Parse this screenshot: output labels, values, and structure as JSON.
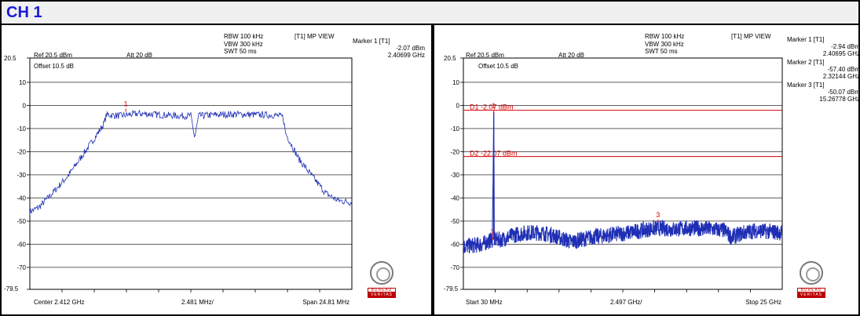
{
  "header": {
    "title": "CH 1"
  },
  "panels": [
    {
      "settings": {
        "rbw": "RBW 100 kHz",
        "vbw": "VBW 300 kHz",
        "swt": "SWT 50 ms",
        "view": "[T1] MP VIEW",
        "ref": "Ref 20.5 dBm",
        "att": "Att  20 dB",
        "offset": "Offset 10.5 dB",
        "top_value": "20.5",
        "bottom_value": "-79.5",
        "center": "Center 2.412 GHz",
        "div": "2.481 MHz/",
        "span": "Span 24.81 MHz"
      },
      "markers_info": [
        {
          "label": "Marker 1 [T1]",
          "level": "-2.07 dBm",
          "freq": "2.40699 GHz"
        }
      ]
    },
    {
      "settings": {
        "rbw": "RBW 100 kHz",
        "vbw": "VBW 300 kHz",
        "swt": "SWT 50 ms",
        "view": "[T1] MP VIEW",
        "ref": "Ref 20.5 dBm",
        "att": "Att  20 dB",
        "offset": "Offset 10.5 dB",
        "top_value": "20.5",
        "bottom_value": "-79.5",
        "start": "Start 30 MHz",
        "div": "2.497 GHz/",
        "stop": "Stop 25 GHz",
        "d1_label": "D1 -2.07 dBm",
        "d2_label": "D2 -22.07 dBm"
      },
      "markers_info": [
        {
          "label": "Marker 1 [T1]",
          "level": "-2.94 dBm",
          "freq": "2.40695 GHz"
        },
        {
          "label": "Marker 2 [T1]",
          "level": "-57.40 dBm",
          "freq": "2.32144 GHz"
        },
        {
          "label": "Marker 3 [T1]",
          "level": "-50.07 dBm",
          "freq": "15.26778 GHz"
        }
      ]
    }
  ],
  "logo": {
    "line1": "BUREAU",
    "line2": "VERITAS"
  },
  "chart_data": [
    {
      "type": "line",
      "xlim": [
        2399.6,
        2424.4
      ],
      "ylim": [
        -79.5,
        20.5
      ],
      "y_ticks": [
        10,
        0,
        -10,
        -20,
        -30,
        -40,
        -50,
        -60,
        -70
      ],
      "grid": true,
      "colors": {
        "trace": "#1f2fb5",
        "marker": "#dd0000",
        "grid": "#000000"
      },
      "series": [
        {
          "x": [
            2399.6,
            2400.3,
            2401.0,
            2401.8,
            2402.6,
            2403.6,
            2404.6,
            2405.3,
            2405.5,
            2406.5,
            2408.0,
            2409.5,
            2411.0,
            2412.0,
            2412.3,
            2412.6,
            2414.0,
            2415.5,
            2417.0,
            2418.5,
            2419.1,
            2419.3,
            2420.3,
            2421.4,
            2422.4,
            2423.3,
            2424.4
          ],
          "y": [
            -46,
            -44,
            -40,
            -35,
            -30,
            -22,
            -14,
            -8,
            -4,
            -4.5,
            -3.5,
            -4,
            -4.5,
            -4.5,
            -14,
            -4.5,
            -4,
            -3.8,
            -4,
            -4.2,
            -5,
            -12,
            -23,
            -31,
            -38,
            -41,
            -42
          ]
        }
      ],
      "markers": [
        {
          "label": "1",
          "x": 2406.99,
          "y": -2.07
        }
      ]
    },
    {
      "type": "line",
      "xlim": [
        30,
        25000
      ],
      "ylim": [
        -79.5,
        20.5
      ],
      "y_ticks": [
        10,
        0,
        -10,
        -20,
        -30,
        -40,
        -50,
        -60,
        -70
      ],
      "grid": true,
      "colors": {
        "trace": "#1f2fb5",
        "marker": "#dd0000",
        "grid": "#000000"
      },
      "display_lines": [
        {
          "label": "D1",
          "y": -2.07
        },
        {
          "label": "D2",
          "y": -22.07
        }
      ],
      "series": [
        {
          "x": [
            30,
            1500,
            2300,
            2407,
            2450,
            3000,
            4000,
            5000,
            6000,
            7000,
            8500,
            10000,
            11500,
            13000,
            14500,
            15300,
            16500,
            18000,
            19500,
            20500,
            21000,
            22000,
            23000,
            24000,
            25000
          ],
          "y": [
            -61,
            -60,
            -58,
            -2.9,
            -58,
            -58,
            -56,
            -55,
            -55,
            -56,
            -59,
            -57,
            -56,
            -55,
            -53.5,
            -53,
            -53.5,
            -53,
            -53.5,
            -54,
            -57,
            -55,
            -54,
            -54.5,
            -55
          ]
        }
      ],
      "markers": [
        {
          "label": "1",
          "x": 2406.95,
          "y": -2.94
        },
        {
          "label": "2",
          "x": 2321.44,
          "y": -57.4
        },
        {
          "label": "3",
          "x": 15267.78,
          "y": -50.07
        }
      ]
    }
  ]
}
